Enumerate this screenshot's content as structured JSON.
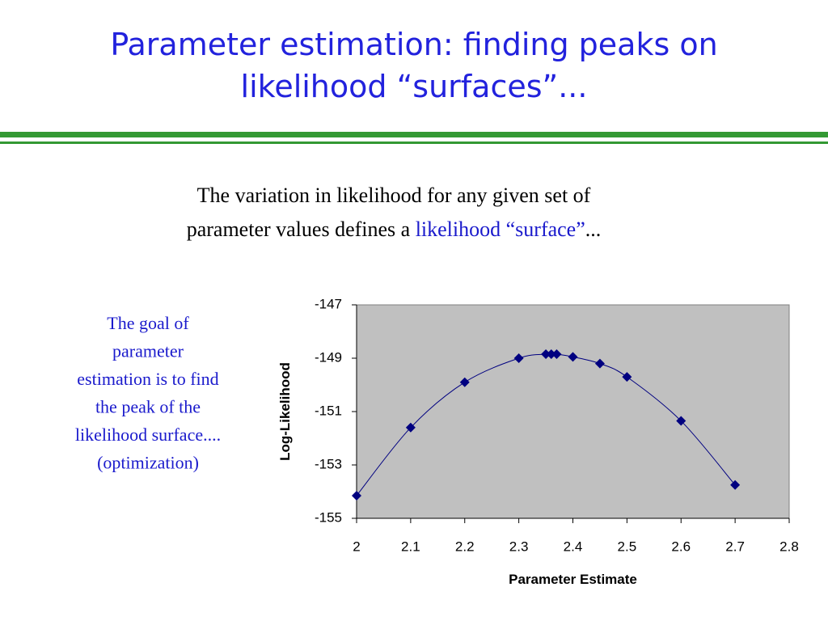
{
  "title_lines": [
    "Parameter estimation: finding peaks on",
    "likelihood “surfaces”..."
  ],
  "body": {
    "line1": "The variation in likelihood for any given set of",
    "line2_start": "parameter values defines a ",
    "line2_link": "likelihood “surface”",
    "line2_end": "..."
  },
  "side_lines": [
    "The goal of",
    "parameter",
    "estimation is to find",
    "the peak of the",
    "likelihood surface....",
    "(optimization)"
  ],
  "chart_data": {
    "type": "scatter",
    "x_label": "Parameter Estimate",
    "y_label": "Log-Likelihood",
    "x": [
      2,
      2.1,
      2.2,
      2.3,
      2.35,
      2.36,
      2.37,
      2.4,
      2.45,
      2.5,
      2.6,
      2.7
    ],
    "values": [
      -154.15,
      -151.6,
      -149.9,
      -149.0,
      -148.85,
      -148.85,
      -148.85,
      -148.95,
      -149.2,
      -149.7,
      -151.35,
      -153.75
    ],
    "color": "#000080",
    "smooth_line": true,
    "plot_background": "#c0c0c0",
    "grid": false,
    "xlim": [
      2,
      2.8
    ],
    "xticks": [
      2,
      2.1,
      2.2,
      2.3,
      2.4,
      2.5,
      2.6,
      2.7,
      2.8
    ],
    "ylim": [
      -155,
      -147
    ],
    "yticks": [
      -155,
      -153,
      -151,
      -149,
      -147
    ]
  }
}
